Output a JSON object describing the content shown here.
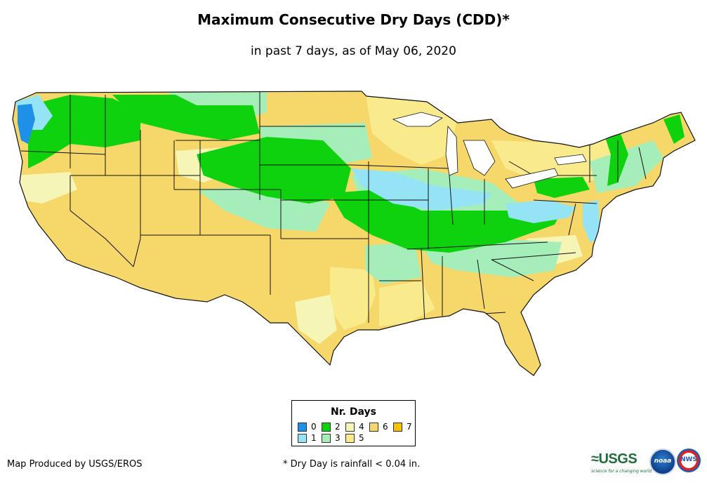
{
  "header": {
    "title": "Maximum Consecutive Dry Days (CDD)*",
    "subtitle": "in past 7 days, as of May 06, 2020"
  },
  "legend": {
    "title": "Nr. Days",
    "items": [
      {
        "label": "0",
        "color": "#1e90e8"
      },
      {
        "label": "1",
        "color": "#94e4f6"
      },
      {
        "label": "2",
        "color": "#0ed20e"
      },
      {
        "label": "3",
        "color": "#a6eeb9"
      },
      {
        "label": "4",
        "color": "#f5f5b6"
      },
      {
        "label": "5",
        "color": "#f9eb8c"
      },
      {
        "label": "6",
        "color": "#f6d769"
      },
      {
        "label": "7",
        "color": "#f5c400"
      }
    ]
  },
  "footer": {
    "credit": "Map Produced by USGS/EROS",
    "footnote": "* Dry Day is rainfall < 0.04 in."
  },
  "logos": {
    "usgs": "≈USGS",
    "usgs_tagline": "science for a changing world",
    "noaa": "noaa",
    "nws": "NWS"
  }
}
